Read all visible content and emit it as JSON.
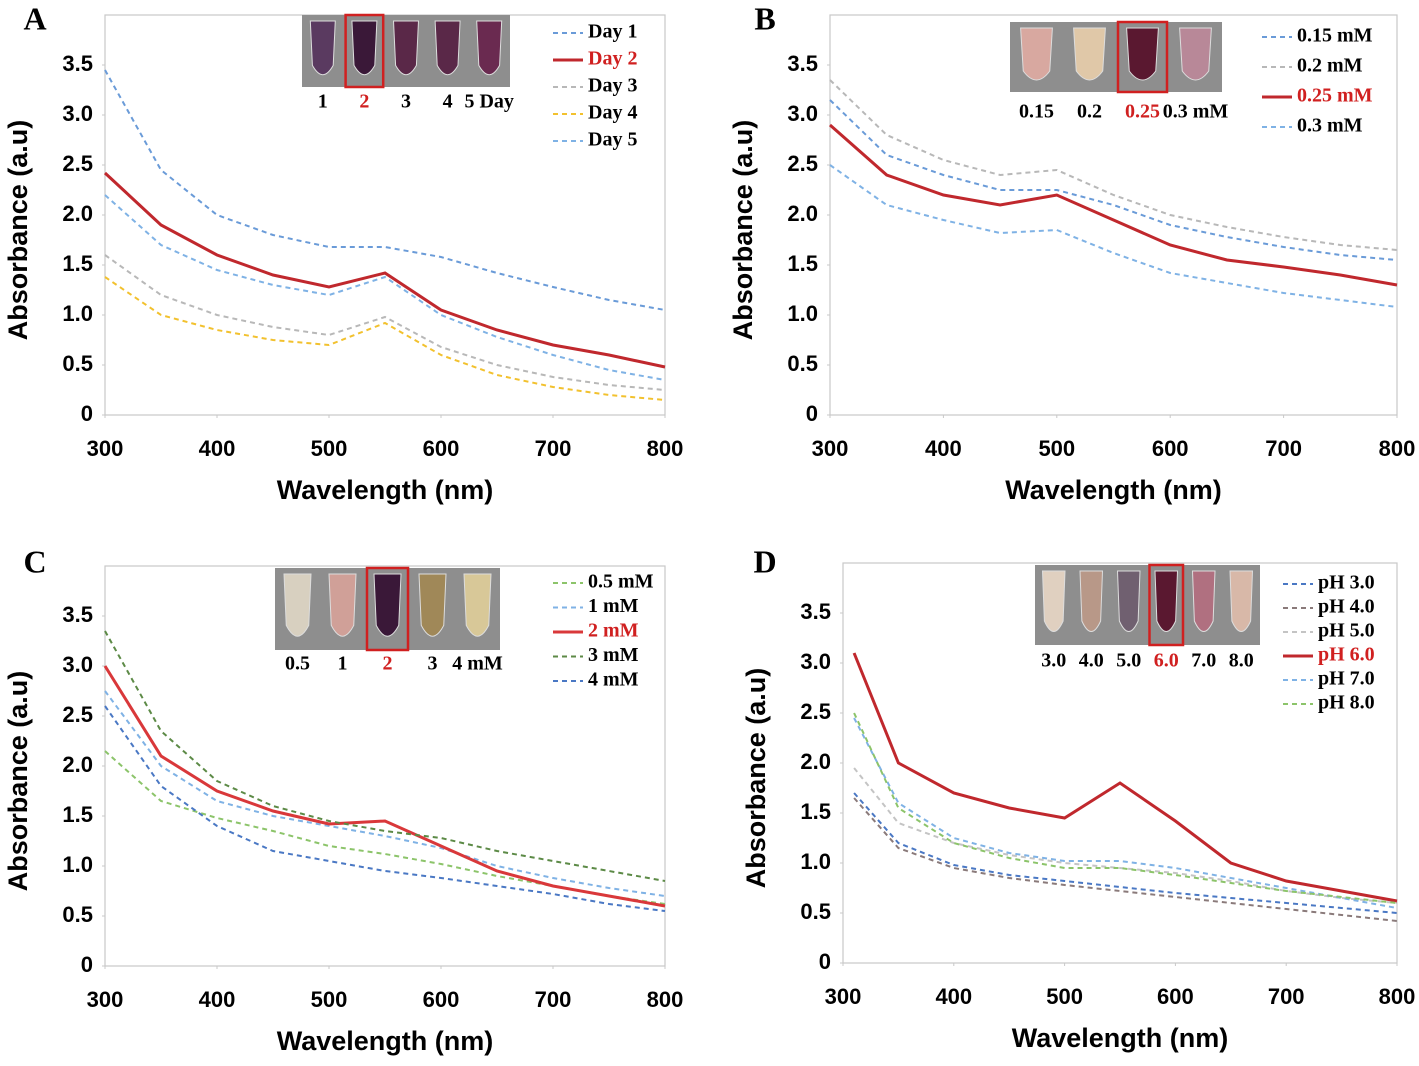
{
  "chart_data": [
    {
      "type": "line",
      "title": "A",
      "x_label": "Wavelength (nm)",
      "y_label": "Absorbance (a.u)",
      "xlim": [
        300,
        800
      ],
      "xticks": [
        300,
        400,
        500,
        600,
        700,
        800
      ],
      "ylim": [
        0,
        4
      ],
      "yticks": [
        0,
        0.5,
        {
          "value": 1,
          "label": "1.0"
        },
        1.5,
        {
          "value": 2,
          "label": "2.0"
        },
        2.5,
        {
          "value": 3,
          "label": "3.0"
        },
        3.5
      ],
      "legend": "upper right",
      "inset_labels": [
        "1",
        "2",
        "3",
        "4",
        "5 Day"
      ],
      "x": [
        300,
        350,
        400,
        450,
        500,
        550,
        600,
        650,
        700,
        750,
        800
      ],
      "series": [
        {
          "name": "Day 1",
          "color": "#6a9bd8",
          "line_style": "dashed",
          "values": [
            3.45,
            2.45,
            2.0,
            1.8,
            1.68,
            1.68,
            1.58,
            1.42,
            1.28,
            1.15,
            1.05
          ]
        },
        {
          "name": "Day 2",
          "color": "#c0282d",
          "line_style": "solid",
          "values": [
            2.42,
            1.9,
            1.6,
            1.4,
            1.28,
            1.42,
            1.05,
            0.85,
            0.7,
            0.6,
            0.48
          ]
        },
        {
          "name": "Day 3",
          "color": "#b8b8b8",
          "line_style": "dashed",
          "values": [
            1.6,
            1.2,
            1.0,
            0.88,
            0.8,
            0.98,
            0.68,
            0.5,
            0.38,
            0.3,
            0.25
          ]
        },
        {
          "name": "Day 4",
          "color": "#f2c12e",
          "line_style": "dashed",
          "values": [
            1.38,
            1.0,
            0.85,
            0.75,
            0.7,
            0.92,
            0.6,
            0.4,
            0.28,
            0.2,
            0.15
          ]
        },
        {
          "name": "Day 5",
          "color": "#7fb2e5",
          "line_style": "dashed",
          "values": [
            2.2,
            1.7,
            1.45,
            1.3,
            1.2,
            1.38,
            1.0,
            0.78,
            0.6,
            0.45,
            0.35
          ]
        }
      ]
    },
    {
      "type": "line",
      "title": "B",
      "x_label": "Wavelength (nm)",
      "y_label": "Absorbance (a.u)",
      "xlim": [
        300,
        800
      ],
      "xticks": [
        300,
        400,
        500,
        600,
        700,
        800
      ],
      "ylim": [
        0,
        4
      ],
      "yticks": [
        0,
        0.5,
        {
          "value": 1,
          "label": "1.0"
        },
        1.5,
        {
          "value": 2,
          "label": "2.0"
        },
        2.5,
        {
          "value": 3,
          "label": "3.0"
        },
        3.5
      ],
      "legend": "upper right",
      "inset_labels": [
        "0.15",
        "0.2",
        "0.25",
        "0.3 mM"
      ],
      "x": [
        300,
        350,
        400,
        450,
        500,
        550,
        600,
        650,
        700,
        750,
        800
      ],
      "series": [
        {
          "name": "0.15 mM",
          "color": "#6a9bd8",
          "line_style": "dashed",
          "values": [
            3.15,
            2.6,
            2.4,
            2.25,
            2.25,
            2.1,
            1.9,
            1.78,
            1.68,
            1.6,
            1.55
          ]
        },
        {
          "name": "0.2 mM",
          "color": "#b8b8b8",
          "line_style": "dashed",
          "values": [
            3.35,
            2.8,
            2.55,
            2.4,
            2.45,
            2.2,
            2.0,
            1.88,
            1.78,
            1.7,
            1.65
          ]
        },
        {
          "name": "0.25 mM",
          "color": "#c0282d",
          "line_style": "solid",
          "values": [
            2.9,
            2.4,
            2.2,
            2.1,
            2.2,
            1.95,
            1.7,
            1.55,
            1.48,
            1.4,
            1.3
          ]
        },
        {
          "name": "0.3 mM",
          "color": "#7fb2e5",
          "line_style": "dashed",
          "values": [
            2.5,
            2.1,
            1.95,
            1.82,
            1.85,
            1.62,
            1.42,
            1.32,
            1.22,
            1.15,
            1.08
          ]
        }
      ]
    },
    {
      "type": "line",
      "title": "C",
      "x_label": "Wavelength (nm)",
      "y_label": "Absorbance (a.u)",
      "xlim": [
        300,
        800
      ],
      "xticks": [
        300,
        400,
        500,
        600,
        700,
        800
      ],
      "ylim": [
        0,
        4
      ],
      "yticks": [
        0,
        0.5,
        {
          "value": 1,
          "label": "1.0"
        },
        1.5,
        {
          "value": 2,
          "label": "2.0"
        },
        2.5,
        {
          "value": 3,
          "label": "3.0"
        },
        3.5
      ],
      "legend": "upper right",
      "inset_labels": [
        "0.5",
        "1",
        "2",
        "3",
        "4 mM"
      ],
      "x": [
        300,
        350,
        400,
        450,
        500,
        550,
        600,
        650,
        700,
        750,
        800
      ],
      "series": [
        {
          "name": "0.5 mM",
          "color": "#8cc46a",
          "line_style": "dashed",
          "values": [
            2.15,
            1.65,
            1.48,
            1.35,
            1.2,
            1.12,
            1.02,
            0.9,
            0.8,
            0.7,
            0.62
          ]
        },
        {
          "name": "1 mM",
          "color": "#7fb2e5",
          "line_style": "dashed",
          "values": [
            2.75,
            2.0,
            1.65,
            1.5,
            1.4,
            1.3,
            1.18,
            1.0,
            0.88,
            0.78,
            0.7
          ]
        },
        {
          "name": "2 mM",
          "color": "#d9383a",
          "line_style": "solid",
          "values": [
            3.0,
            2.1,
            1.75,
            1.55,
            1.42,
            1.45,
            1.2,
            0.95,
            0.8,
            0.7,
            0.6
          ]
        },
        {
          "name": "3 mM",
          "color": "#5c8a46",
          "line_style": "dashed",
          "values": [
            3.35,
            2.35,
            1.85,
            1.6,
            1.45,
            1.35,
            1.28,
            1.15,
            1.05,
            0.95,
            0.85
          ]
        },
        {
          "name": "4 mM",
          "color": "#4a78c4",
          "line_style": "dashed",
          "values": [
            2.6,
            1.8,
            1.4,
            1.15,
            1.05,
            0.95,
            0.88,
            0.8,
            0.72,
            0.62,
            0.55
          ]
        }
      ]
    },
    {
      "type": "line",
      "title": "D",
      "x_label": "Wavelength (nm)",
      "y_label": "Absorbance (a.u)",
      "xlim": [
        300,
        800
      ],
      "xticks": [
        300,
        400,
        500,
        600,
        700,
        800
      ],
      "ylim": [
        0,
        4
      ],
      "yticks": [
        0,
        0.5,
        {
          "value": 1,
          "label": "1.0"
        },
        1.5,
        {
          "value": 2,
          "label": "2.0"
        },
        2.5,
        {
          "value": 3,
          "label": "3.0"
        },
        3.5
      ],
      "legend": "upper right",
      "inset_labels": [
        "3.0",
        "4.0",
        "5.0",
        "6.0",
        "7.0",
        "8.0"
      ],
      "x": [
        310,
        350,
        400,
        450,
        500,
        550,
        600,
        650,
        700,
        750,
        800
      ],
      "series": [
        {
          "name": "pH 3.0",
          "color": "#4a78c4",
          "line_style": "dashed",
          "values": [
            1.7,
            1.2,
            0.98,
            0.88,
            0.82,
            0.76,
            0.7,
            0.65,
            0.6,
            0.55,
            0.5
          ]
        },
        {
          "name": "pH 4.0",
          "color": "#8a7a7a",
          "line_style": "dashed",
          "values": [
            1.65,
            1.15,
            0.95,
            0.85,
            0.78,
            0.72,
            0.66,
            0.6,
            0.54,
            0.48,
            0.42
          ]
        },
        {
          "name": "pH 5.0",
          "color": "#c4c4c4",
          "line_style": "dashed",
          "values": [
            1.95,
            1.4,
            1.2,
            1.08,
            1.0,
            0.95,
            0.9,
            0.82,
            0.72,
            0.65,
            0.6
          ]
        },
        {
          "name": "pH 6.0",
          "color": "#c0282d",
          "line_style": "solid",
          "values": [
            3.1,
            2.0,
            1.7,
            1.55,
            1.45,
            1.8,
            1.42,
            1.0,
            0.82,
            0.72,
            0.62
          ]
        },
        {
          "name": "pH 7.0",
          "color": "#7fb2e5",
          "line_style": "dashed",
          "values": [
            2.45,
            1.6,
            1.25,
            1.1,
            1.02,
            1.02,
            0.95,
            0.85,
            0.75,
            0.65,
            0.55
          ]
        },
        {
          "name": "pH 8.0",
          "color": "#8cc46a",
          "line_style": "dashed",
          "values": [
            2.5,
            1.55,
            1.2,
            1.05,
            0.95,
            0.95,
            0.88,
            0.8,
            0.72,
            0.66,
            0.6
          ]
        }
      ]
    }
  ]
}
